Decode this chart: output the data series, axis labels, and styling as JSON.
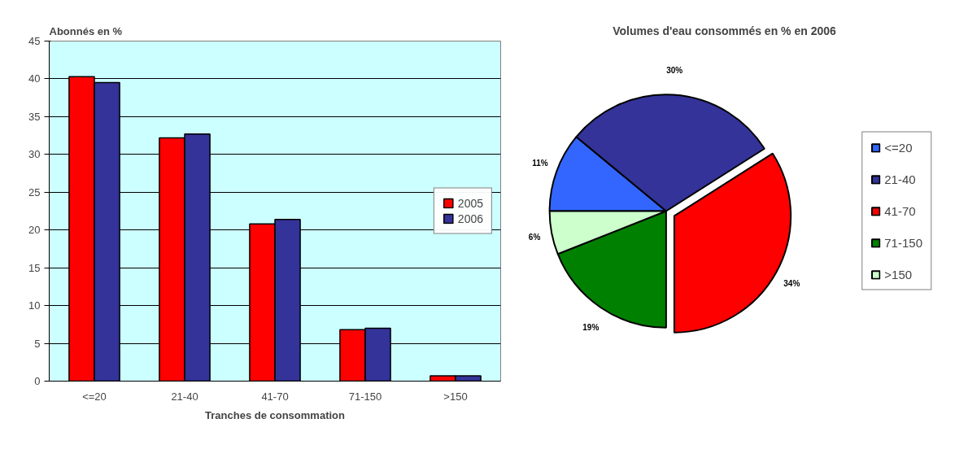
{
  "chart_data": [
    {
      "type": "bar",
      "ylabel": "Abonnés en  %",
      "xlabel": "Tranches de consommation",
      "categories": [
        "<=20",
        "21-40",
        "41-70",
        "71-150",
        ">150"
      ],
      "series": [
        {
          "name": "2005",
          "color": "#ff0000",
          "values": [
            40.3,
            32.2,
            20.8,
            6.8,
            0.7
          ]
        },
        {
          "name": "2006",
          "color": "#333399",
          "values": [
            39.5,
            32.7,
            21.4,
            7.0,
            0.7
          ]
        }
      ],
      "ylim": [
        0,
        45
      ],
      "yticks": [
        0,
        5,
        10,
        15,
        20,
        25,
        30,
        35,
        40,
        45
      ],
      "grid": "y",
      "legend": "right"
    },
    {
      "type": "pie",
      "title": "Volumes d'eau consommés en % en 2006",
      "categories": [
        "<=20",
        "21-40",
        "41-70",
        "71-150",
        ">150"
      ],
      "values": [
        11,
        30,
        34,
        19,
        6
      ],
      "colors": [
        "#3366ff",
        "#333399",
        "#ff0000",
        "#008000",
        "#ccffcc"
      ],
      "value_labels": [
        "11%",
        "30%",
        "34%",
        "19%",
        "6%"
      ],
      "legend": "right"
    }
  ]
}
